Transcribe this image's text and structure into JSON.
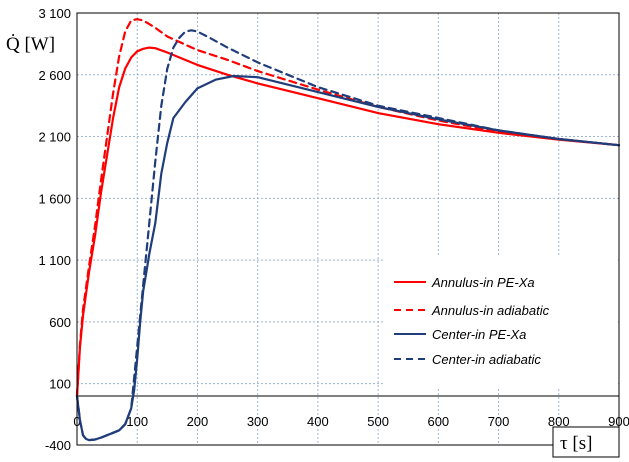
{
  "chart_data": {
    "type": "line",
    "title": "",
    "xlabel": "τ [s]",
    "ylabel": "Q̇ [W]",
    "xlim": [
      0,
      900
    ],
    "ylim": [
      -400,
      3100
    ],
    "x_ticks": [
      "0",
      "100",
      "200",
      "300",
      "400",
      "500",
      "600",
      "700",
      "800",
      "900"
    ],
    "y_ticks": [
      "-400",
      "100",
      "600",
      "1 100",
      "1 600",
      "2 100",
      "2 600",
      "3 100"
    ],
    "grid": true,
    "legend_position": "bottom-right",
    "series": [
      {
        "name": "Annulus-in PE-Xa",
        "color": "#ff0000",
        "dash": "solid",
        "x": [
          0,
          5,
          10,
          20,
          30,
          40,
          50,
          60,
          70,
          80,
          90,
          100,
          110,
          120,
          130,
          150,
          200,
          250,
          300,
          400,
          500,
          600,
          700,
          800,
          900
        ],
        "y": [
          0,
          400,
          650,
          1000,
          1300,
          1650,
          1950,
          2250,
          2500,
          2650,
          2740,
          2790,
          2810,
          2820,
          2815,
          2780,
          2680,
          2600,
          2530,
          2410,
          2290,
          2200,
          2130,
          2075,
          2030
        ]
      },
      {
        "name": "Annulus-in adiabatic",
        "color": "#ff0000",
        "dash": "dashed",
        "x": [
          0,
          5,
          10,
          20,
          30,
          40,
          50,
          60,
          70,
          80,
          90,
          100,
          110,
          120,
          130,
          150,
          200,
          250,
          300,
          400,
          500,
          600,
          700,
          800,
          900
        ],
        "y": [
          0,
          420,
          700,
          1050,
          1380,
          1750,
          2100,
          2450,
          2750,
          2950,
          3040,
          3050,
          3040,
          3010,
          2980,
          2910,
          2800,
          2720,
          2630,
          2480,
          2340,
          2230,
          2140,
          2080,
          2030
        ]
      },
      {
        "name": "Center-in PE-Xa",
        "color": "#1f3d7a",
        "dash": "solid",
        "x": [
          0,
          5,
          10,
          15,
          20,
          30,
          40,
          50,
          60,
          70,
          80,
          90,
          95,
          100,
          105,
          110,
          115,
          120,
          130,
          140,
          150,
          160,
          180,
          200,
          230,
          260,
          300,
          400,
          500,
          600,
          700,
          800,
          900
        ],
        "y": [
          0,
          -200,
          -320,
          -350,
          -360,
          -355,
          -340,
          -320,
          -300,
          -280,
          -230,
          -100,
          50,
          300,
          600,
          850,
          1000,
          1150,
          1400,
          1800,
          2050,
          2250,
          2380,
          2490,
          2560,
          2590,
          2580,
          2460,
          2340,
          2240,
          2150,
          2080,
          2030
        ]
      },
      {
        "name": "Center-in adiabatic",
        "color": "#1f3d7a",
        "dash": "dashed",
        "x": [
          0,
          5,
          10,
          15,
          20,
          30,
          40,
          50,
          60,
          70,
          80,
          90,
          100,
          110,
          120,
          130,
          140,
          150,
          160,
          170,
          180,
          190,
          200,
          220,
          250,
          300,
          400,
          500,
          600,
          700,
          800,
          900
        ],
        "y": [
          0,
          -200,
          -320,
          -350,
          -360,
          -355,
          -340,
          -320,
          -300,
          -280,
          -230,
          -100,
          400,
          900,
          1400,
          1900,
          2350,
          2650,
          2820,
          2900,
          2950,
          2960,
          2950,
          2900,
          2820,
          2700,
          2500,
          2350,
          2250,
          2150,
          2080,
          2030
        ]
      }
    ]
  }
}
